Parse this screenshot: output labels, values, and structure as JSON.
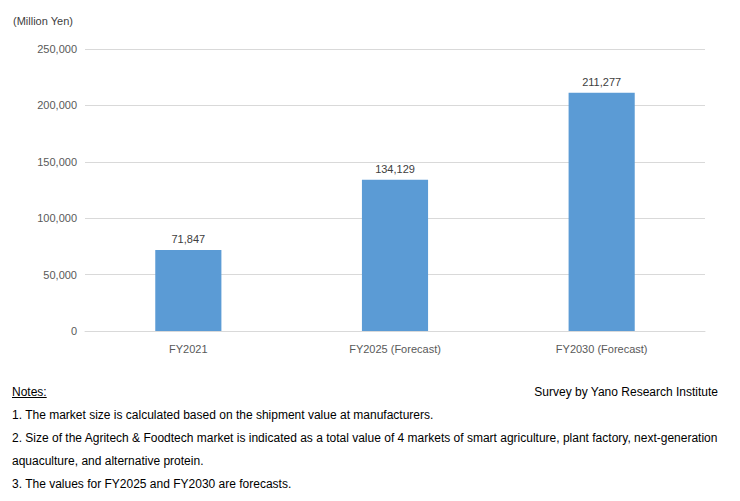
{
  "chart_data": {
    "type": "bar",
    "y_label": "(Million Yen)",
    "categories": [
      "FY2021",
      "FY2025 (Forecast)",
      "FY2030 (Forecast)"
    ],
    "values": [
      71847,
      134129,
      211277
    ],
    "value_labels": [
      "71,847",
      "134,129",
      "211,277"
    ],
    "color": "#5b9bd5",
    "ylim": [
      0,
      250000
    ],
    "yticks": [
      0,
      {
        "value": 50000,
        "label": "50,000"
      },
      {
        "value": 100000,
        "label": "100,000"
      },
      {
        "value": 150000,
        "label": "150,000"
      },
      {
        "value": 200000,
        "label": "200,000"
      },
      {
        "value": 250000,
        "label": "250,000"
      }
    ],
    "grid": true,
    "data_labels": true,
    "notes_heading": "Notes:",
    "notes": [
      "1. The market size is calculated based on the shipment value at manufacturers.",
      "2. Size of the Agritech & Foodtech market is indicated as a total value of 4 markets of smart agriculture, plant factory, next-generation aquaculture, and alternative protein.",
      "3. The values for FY2025 and FY2030 are forecasts."
    ],
    "source": "Survey by Yano Research Institute"
  }
}
